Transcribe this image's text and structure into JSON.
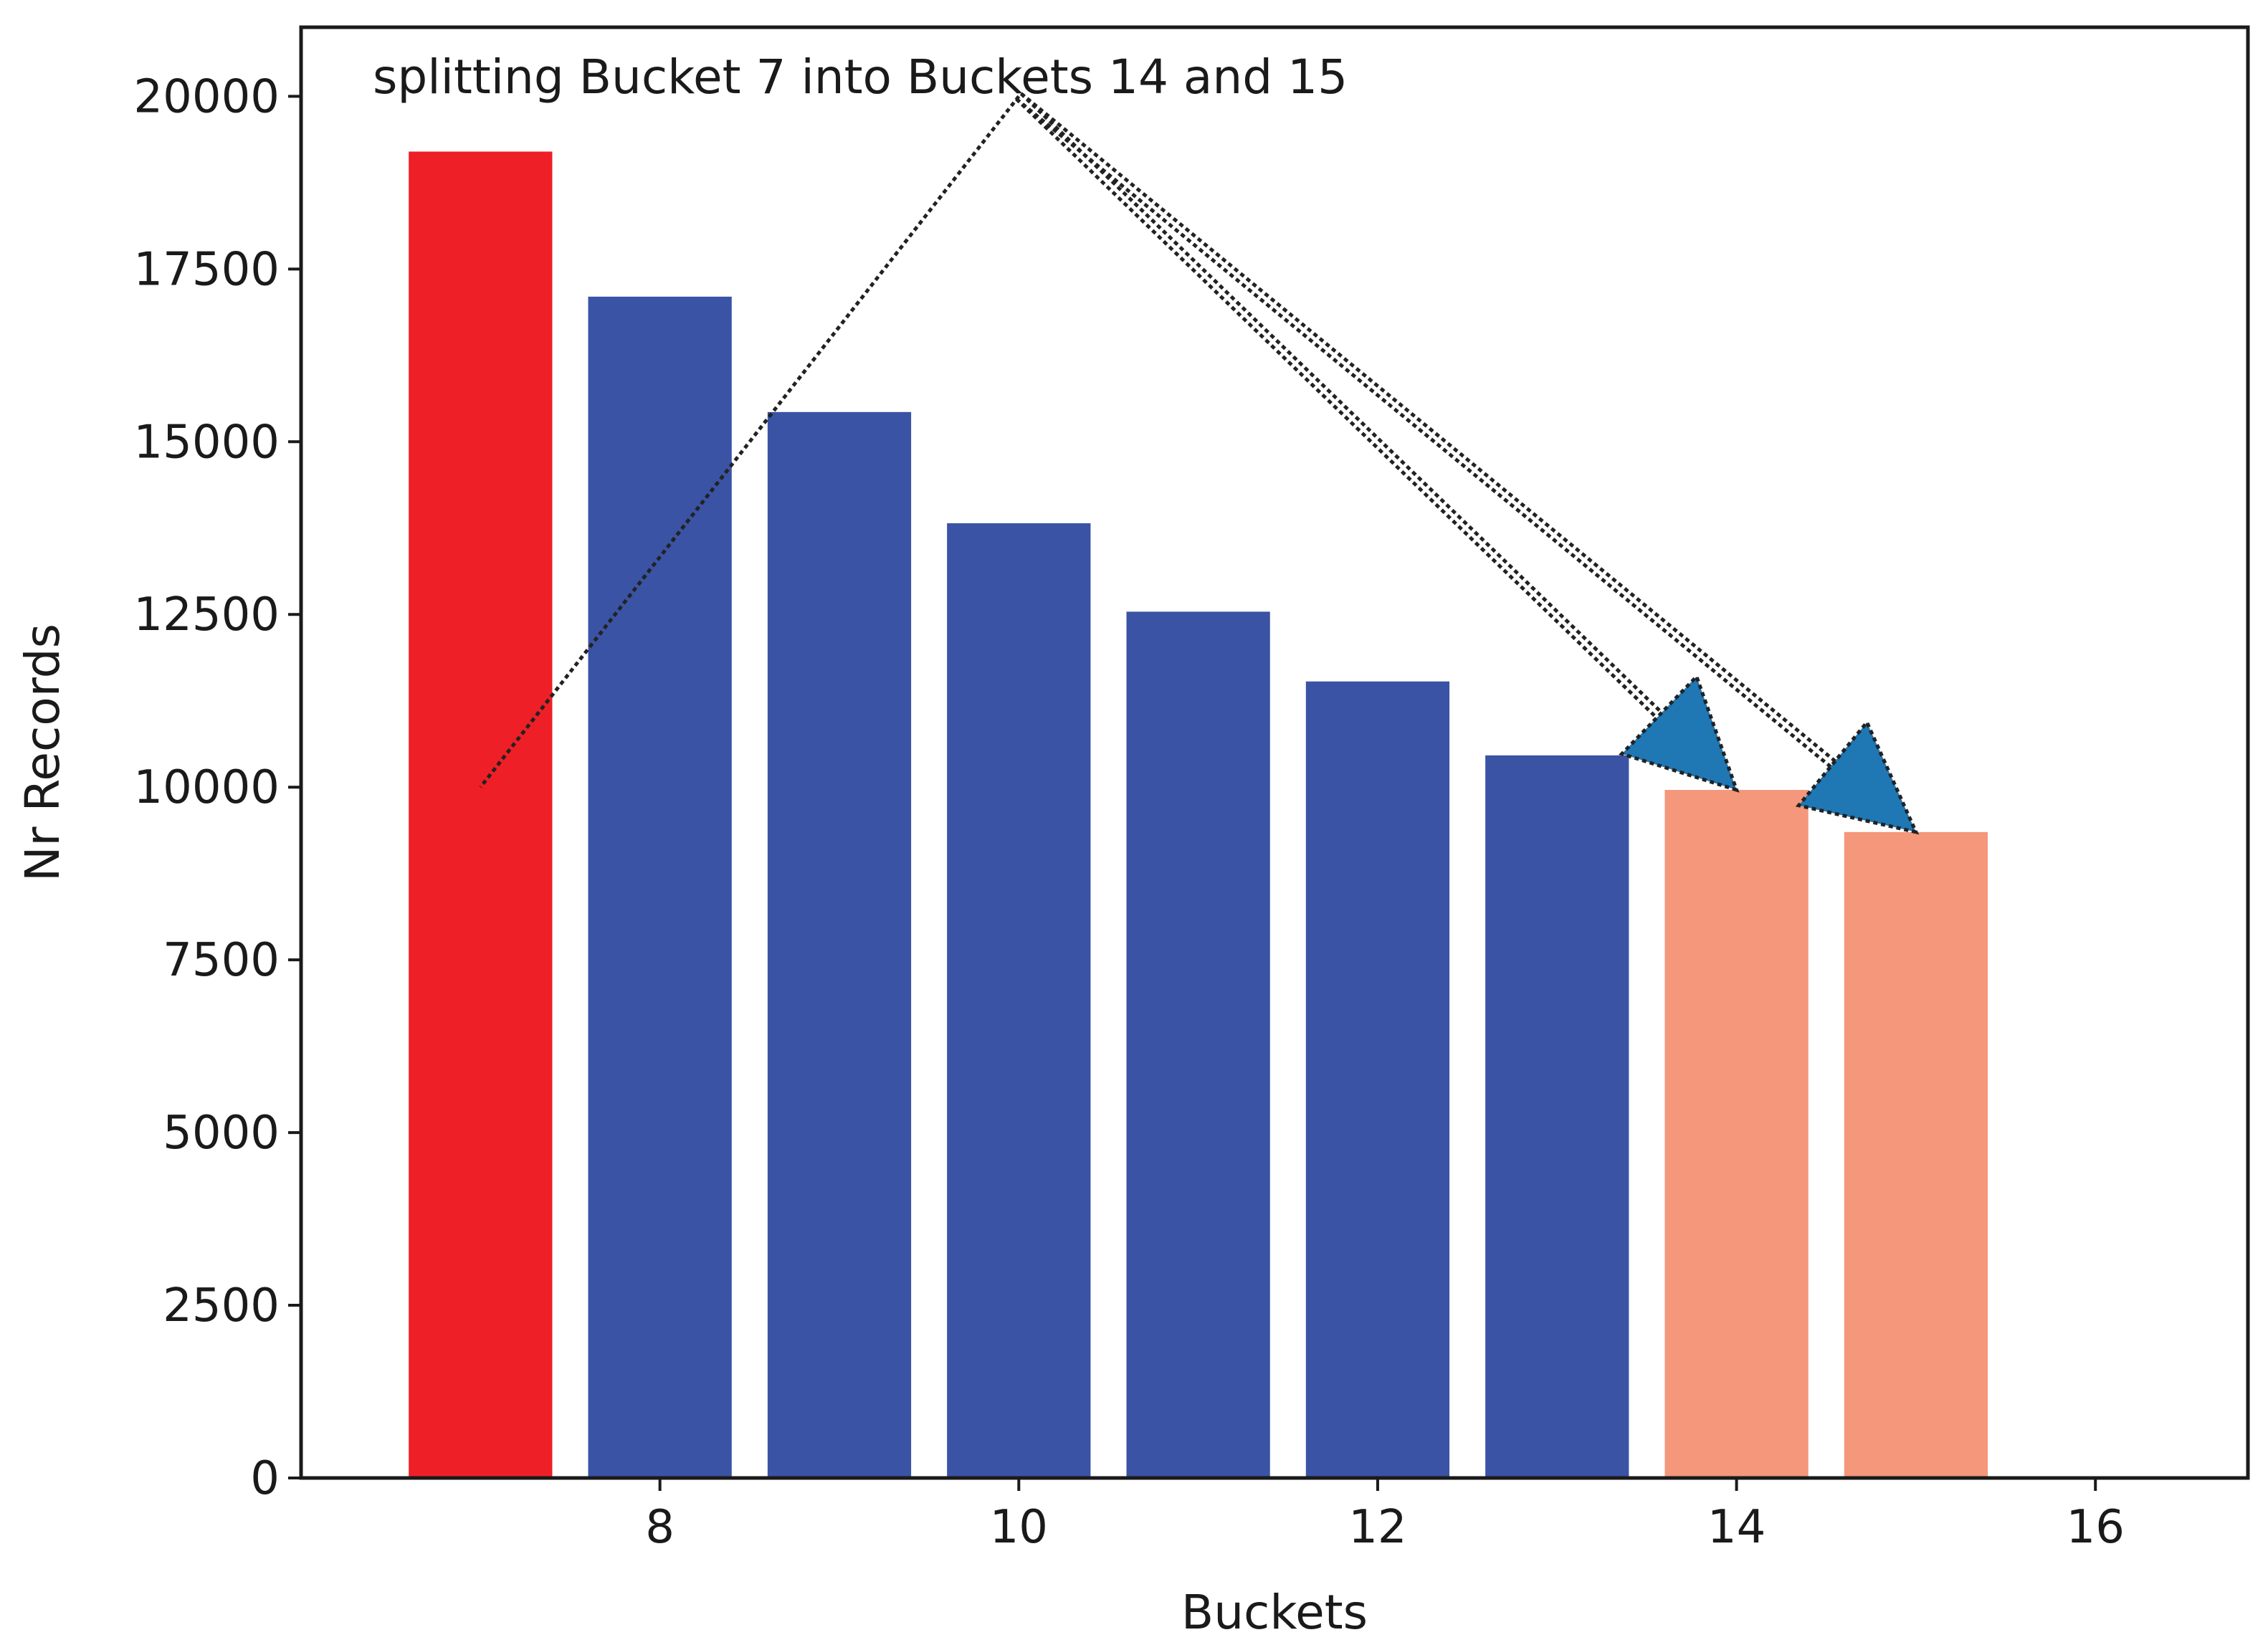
{
  "chart_data": {
    "type": "bar",
    "x": [
      7,
      8,
      9,
      10,
      11,
      12,
      13,
      14,
      15
    ],
    "values": [
      19200,
      17100,
      15430,
      13820,
      12540,
      11530,
      10460,
      9960,
      9350
    ],
    "bar_colors": [
      "#ee1f27",
      "#3a53a4",
      "#3a53a4",
      "#3a53a4",
      "#3a53a4",
      "#3a53a4",
      "#3a53a4",
      "#f4977a",
      "#f4977a"
    ],
    "xlabel": "Buckets",
    "ylabel": "Nr Records",
    "xlim": [
      6.0,
      16.85
    ],
    "ylim": [
      0,
      21000
    ],
    "xticks": [
      "8",
      "10",
      "12",
      "14",
      "16"
    ],
    "yticks": [
      "0",
      "2500",
      "5000",
      "7500",
      "10000",
      "12500",
      "15000",
      "17500",
      "20000"
    ],
    "grid": false,
    "annotation": {
      "text": "splitting Bucket 7 into Buckets 14 and 15",
      "text_anchor": [
        10,
        20000
      ],
      "from": [
        7,
        10000
      ],
      "targets": [
        [
          14,
          9960
        ],
        [
          15,
          9350
        ]
      ],
      "arrow_color": "#1f77b4",
      "line_color": "#222222"
    }
  }
}
